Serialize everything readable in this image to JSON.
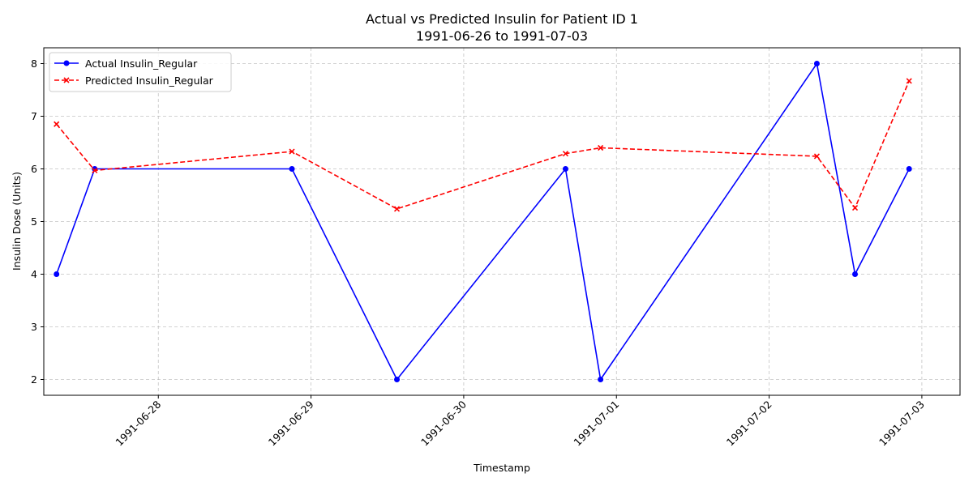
{
  "chart_data": {
    "type": "line",
    "title_line1": "Actual vs Predicted Insulin for Patient ID 1",
    "title_line2": "1991-06-26 to 1991-07-03",
    "xlabel": "Timestamp",
    "ylabel": "Insulin Dose (Units)",
    "xlim": [
      "1991-06-27T06:00",
      "1991-07-03T06:00"
    ],
    "ylim": [
      1.7,
      8.3
    ],
    "x_ticks": [
      "1991-06-28",
      "1991-06-29",
      "1991-06-30",
      "1991-07-01",
      "1991-07-02",
      "1991-07-03"
    ],
    "y_ticks": [
      2,
      3,
      4,
      5,
      6,
      7,
      8
    ],
    "grid": true,
    "legend_position": "top-left",
    "series": [
      {
        "name": "Actual Insulin_Regular",
        "color": "#0000ff",
        "style": "solid",
        "marker": "circle",
        "points": [
          {
            "x": "1991-06-27T08:00",
            "y": 4
          },
          {
            "x": "1991-06-27T14:00",
            "y": 6
          },
          {
            "x": "1991-06-28T21:00",
            "y": 6
          },
          {
            "x": "1991-06-29T13:30",
            "y": 2
          },
          {
            "x": "1991-06-30T16:00",
            "y": 6
          },
          {
            "x": "1991-06-30T21:30",
            "y": 2
          },
          {
            "x": "1991-07-02T07:30",
            "y": 8
          },
          {
            "x": "1991-07-02T13:30",
            "y": 4
          },
          {
            "x": "1991-07-02T22:00",
            "y": 6
          }
        ]
      },
      {
        "name": "Predicted Insulin_Regular",
        "color": "#ff0000",
        "style": "dashed",
        "marker": "x",
        "points": [
          {
            "x": "1991-06-27T08:00",
            "y": 6.85
          },
          {
            "x": "1991-06-27T14:00",
            "y": 5.97
          },
          {
            "x": "1991-06-28T21:00",
            "y": 6.33
          },
          {
            "x": "1991-06-29T13:30",
            "y": 5.24
          },
          {
            "x": "1991-06-30T16:00",
            "y": 6.29
          },
          {
            "x": "1991-06-30T21:30",
            "y": 6.4
          },
          {
            "x": "1991-07-02T07:30",
            "y": 6.24
          },
          {
            "x": "1991-07-02T13:30",
            "y": 5.26
          },
          {
            "x": "1991-07-02T22:00",
            "y": 7.67
          }
        ]
      }
    ]
  }
}
